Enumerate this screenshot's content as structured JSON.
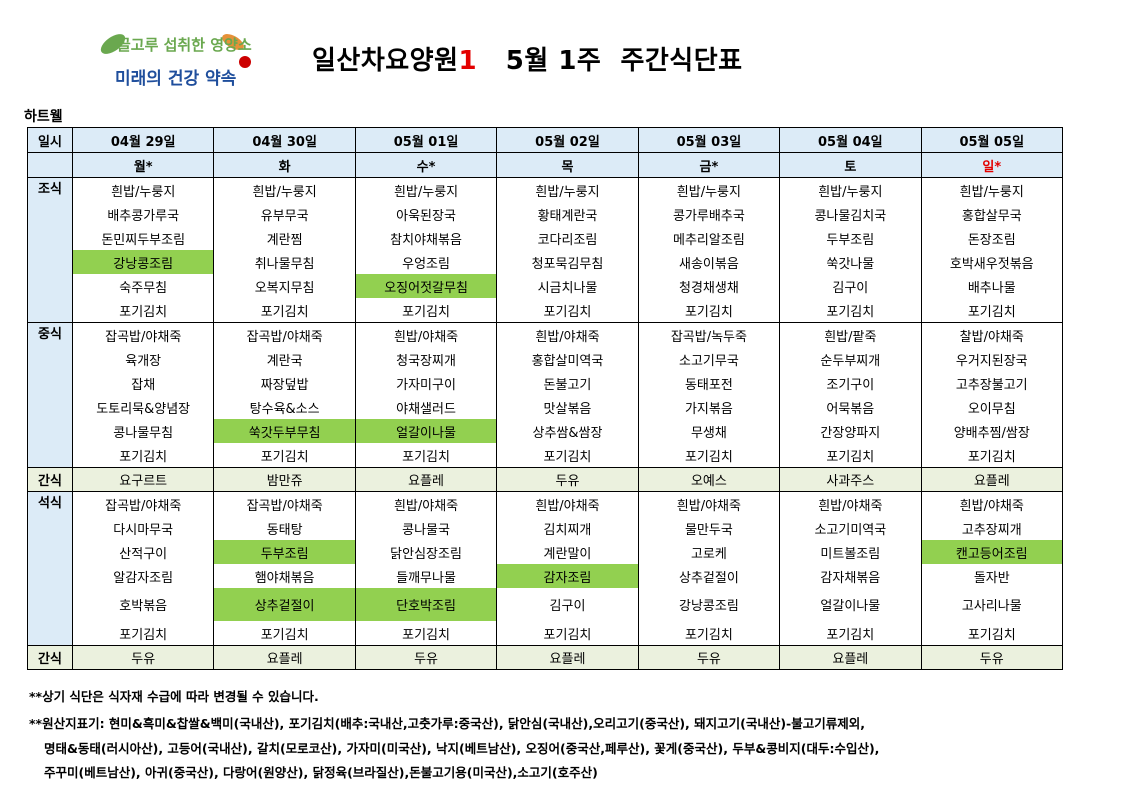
{
  "logo": {
    "line1": "골고루 섭취한 영양소",
    "line2": "미래의 건강 약속"
  },
  "title": {
    "main": "일산차요양원",
    "accent": "1",
    "rest": "   5월 1주  주간식단표"
  },
  "subtitle": "하트웰",
  "header": {
    "label": "일시",
    "dates": [
      "04월 29일",
      "04월 30일",
      "05월 01일",
      "05월 02일",
      "05월 03일",
      "05월 04일",
      "05월 05일"
    ]
  },
  "days": [
    "월*",
    "화",
    "수*",
    "목",
    "금*",
    "토",
    "일*"
  ],
  "meals": {
    "breakfast": {
      "label": "조식",
      "rows": [
        [
          "흰밥/누룽지",
          "흰밥/누룽지",
          "흰밥/누룽지",
          "흰밥/누룽지",
          "흰밥/누룽지",
          "흰밥/누룽지",
          "흰밥/누룽지"
        ],
        [
          "배추콩가루국",
          "유부무국",
          "아욱된장국",
          "황태계란국",
          "콩가루배추국",
          "콩나물김치국",
          "홍합살무국"
        ],
        [
          "돈민찌두부조림",
          "계란찜",
          "참치야채볶음",
          "코다리조림",
          "메추리알조림",
          "두부조림",
          "돈장조림"
        ],
        [
          "강낭콩조림",
          "취나물무침",
          "우엉조림",
          "청포묵김무침",
          "새송이볶음",
          "쑥갓나물",
          "호박새우젓볶음"
        ],
        [
          "숙주무침",
          "오복지무침",
          "오징어젓갈무침",
          "시금치나물",
          "청경채생채",
          "김구이",
          "배추나물"
        ],
        [
          "포기김치",
          "포기김치",
          "포기김치",
          "포기김치",
          "포기김치",
          "포기김치",
          "포기김치"
        ]
      ]
    },
    "lunch": {
      "label": "중식",
      "rows": [
        [
          "잡곡밥/야채죽",
          "잡곡밥/야채죽",
          "흰밥/야채죽",
          "흰밥/야채죽",
          "잡곡밥/녹두죽",
          "흰밥/팥죽",
          "찰밥/야채죽"
        ],
        [
          "육개장",
          "계란국",
          "청국장찌개",
          "홍합살미역국",
          "소고기무국",
          "순두부찌개",
          "우거지된장국"
        ],
        [
          "잡채",
          "짜장덮밥",
          "가자미구이",
          "돈불고기",
          "동태포전",
          "조기구이",
          "고추장불고기"
        ],
        [
          "도토리묵&양념장",
          "탕수육&소스",
          "야채샐러드",
          "맛살볶음",
          "가지볶음",
          "어묵볶음",
          "오이무침"
        ],
        [
          "콩나물무침",
          "쑥갓두부무침",
          "얼갈이나물",
          "상추쌈&쌈장",
          "무생채",
          "간장양파지",
          "양배추찜/쌈장"
        ],
        [
          "포기김치",
          "포기김치",
          "포기김치",
          "포기김치",
          "포기김치",
          "포기김치",
          "포기김치"
        ]
      ]
    },
    "snack1": {
      "label": "간식",
      "items": [
        "요구르트",
        "밤만쥬",
        "요플레",
        "두유",
        "오예스",
        "사과주스",
        "요플레"
      ]
    },
    "dinner": {
      "label": "석식",
      "rows": [
        [
          "잡곡밥/야채죽",
          "잡곡밥/야채죽",
          "흰밥/야채죽",
          "흰밥/야채죽",
          "흰밥/야채죽",
          "흰밥/야채죽",
          "흰밥/야채죽"
        ],
        [
          "다시마무국",
          "동태탕",
          "콩나물국",
          "김치찌개",
          "물만두국",
          "소고기미역국",
          "고추장찌개"
        ],
        [
          "산적구이",
          "두부조림",
          "닭안심장조림",
          "계란말이",
          "고로케",
          "미트볼조림",
          "캔고등어조림"
        ],
        [
          "알감자조림",
          "햄야채볶음",
          "들깨무나물",
          "감자조림",
          "상추겉절이",
          "감자채볶음",
          "돌자반"
        ],
        [
          "호박볶음",
          "상추겉절이",
          "단호박조림",
          "김구이",
          "강낭콩조림",
          "얼갈이나물",
          "고사리나물"
        ],
        [
          "포기김치",
          "포기김치",
          "포기김치",
          "포기김치",
          "포기김치",
          "포기김치",
          "포기김치"
        ]
      ]
    },
    "snack2": {
      "label": "간식",
      "items": [
        "두유",
        "요플레",
        "두유",
        "요플레",
        "두유",
        "요플레",
        "두유"
      ]
    }
  },
  "highlight_color": "#92d050",
  "header_color": "#dcebf7",
  "snack_color": "#ebf1de",
  "notes": {
    "line1": "**상기 식단은 식자재 수급에 따라 변경될 수 있습니다.",
    "line2": "**원산지표기: 현미&흑미&찹쌀&백미(국내산), 포기김치(배추:국내산,고춧가루:중국산), 닭안심(국내산),오리고기(중국산), 돼지고기(국내산)-불고기류제외,",
    "line3": "명태&동태(러시아산), 고등어(국내산), 갈치(모로코산), 가자미(미국산), 낙지(베트남산), 오징어(중국산,페루산), 꽃게(중국산), 두부&콩비지(대두:수입산),",
    "line4": "주꾸미(베트남산), 아귀(중국산), 다랑어(원양산), 닭정육(브라질산),돈불고기용(미국산),소고기(호주산)"
  }
}
